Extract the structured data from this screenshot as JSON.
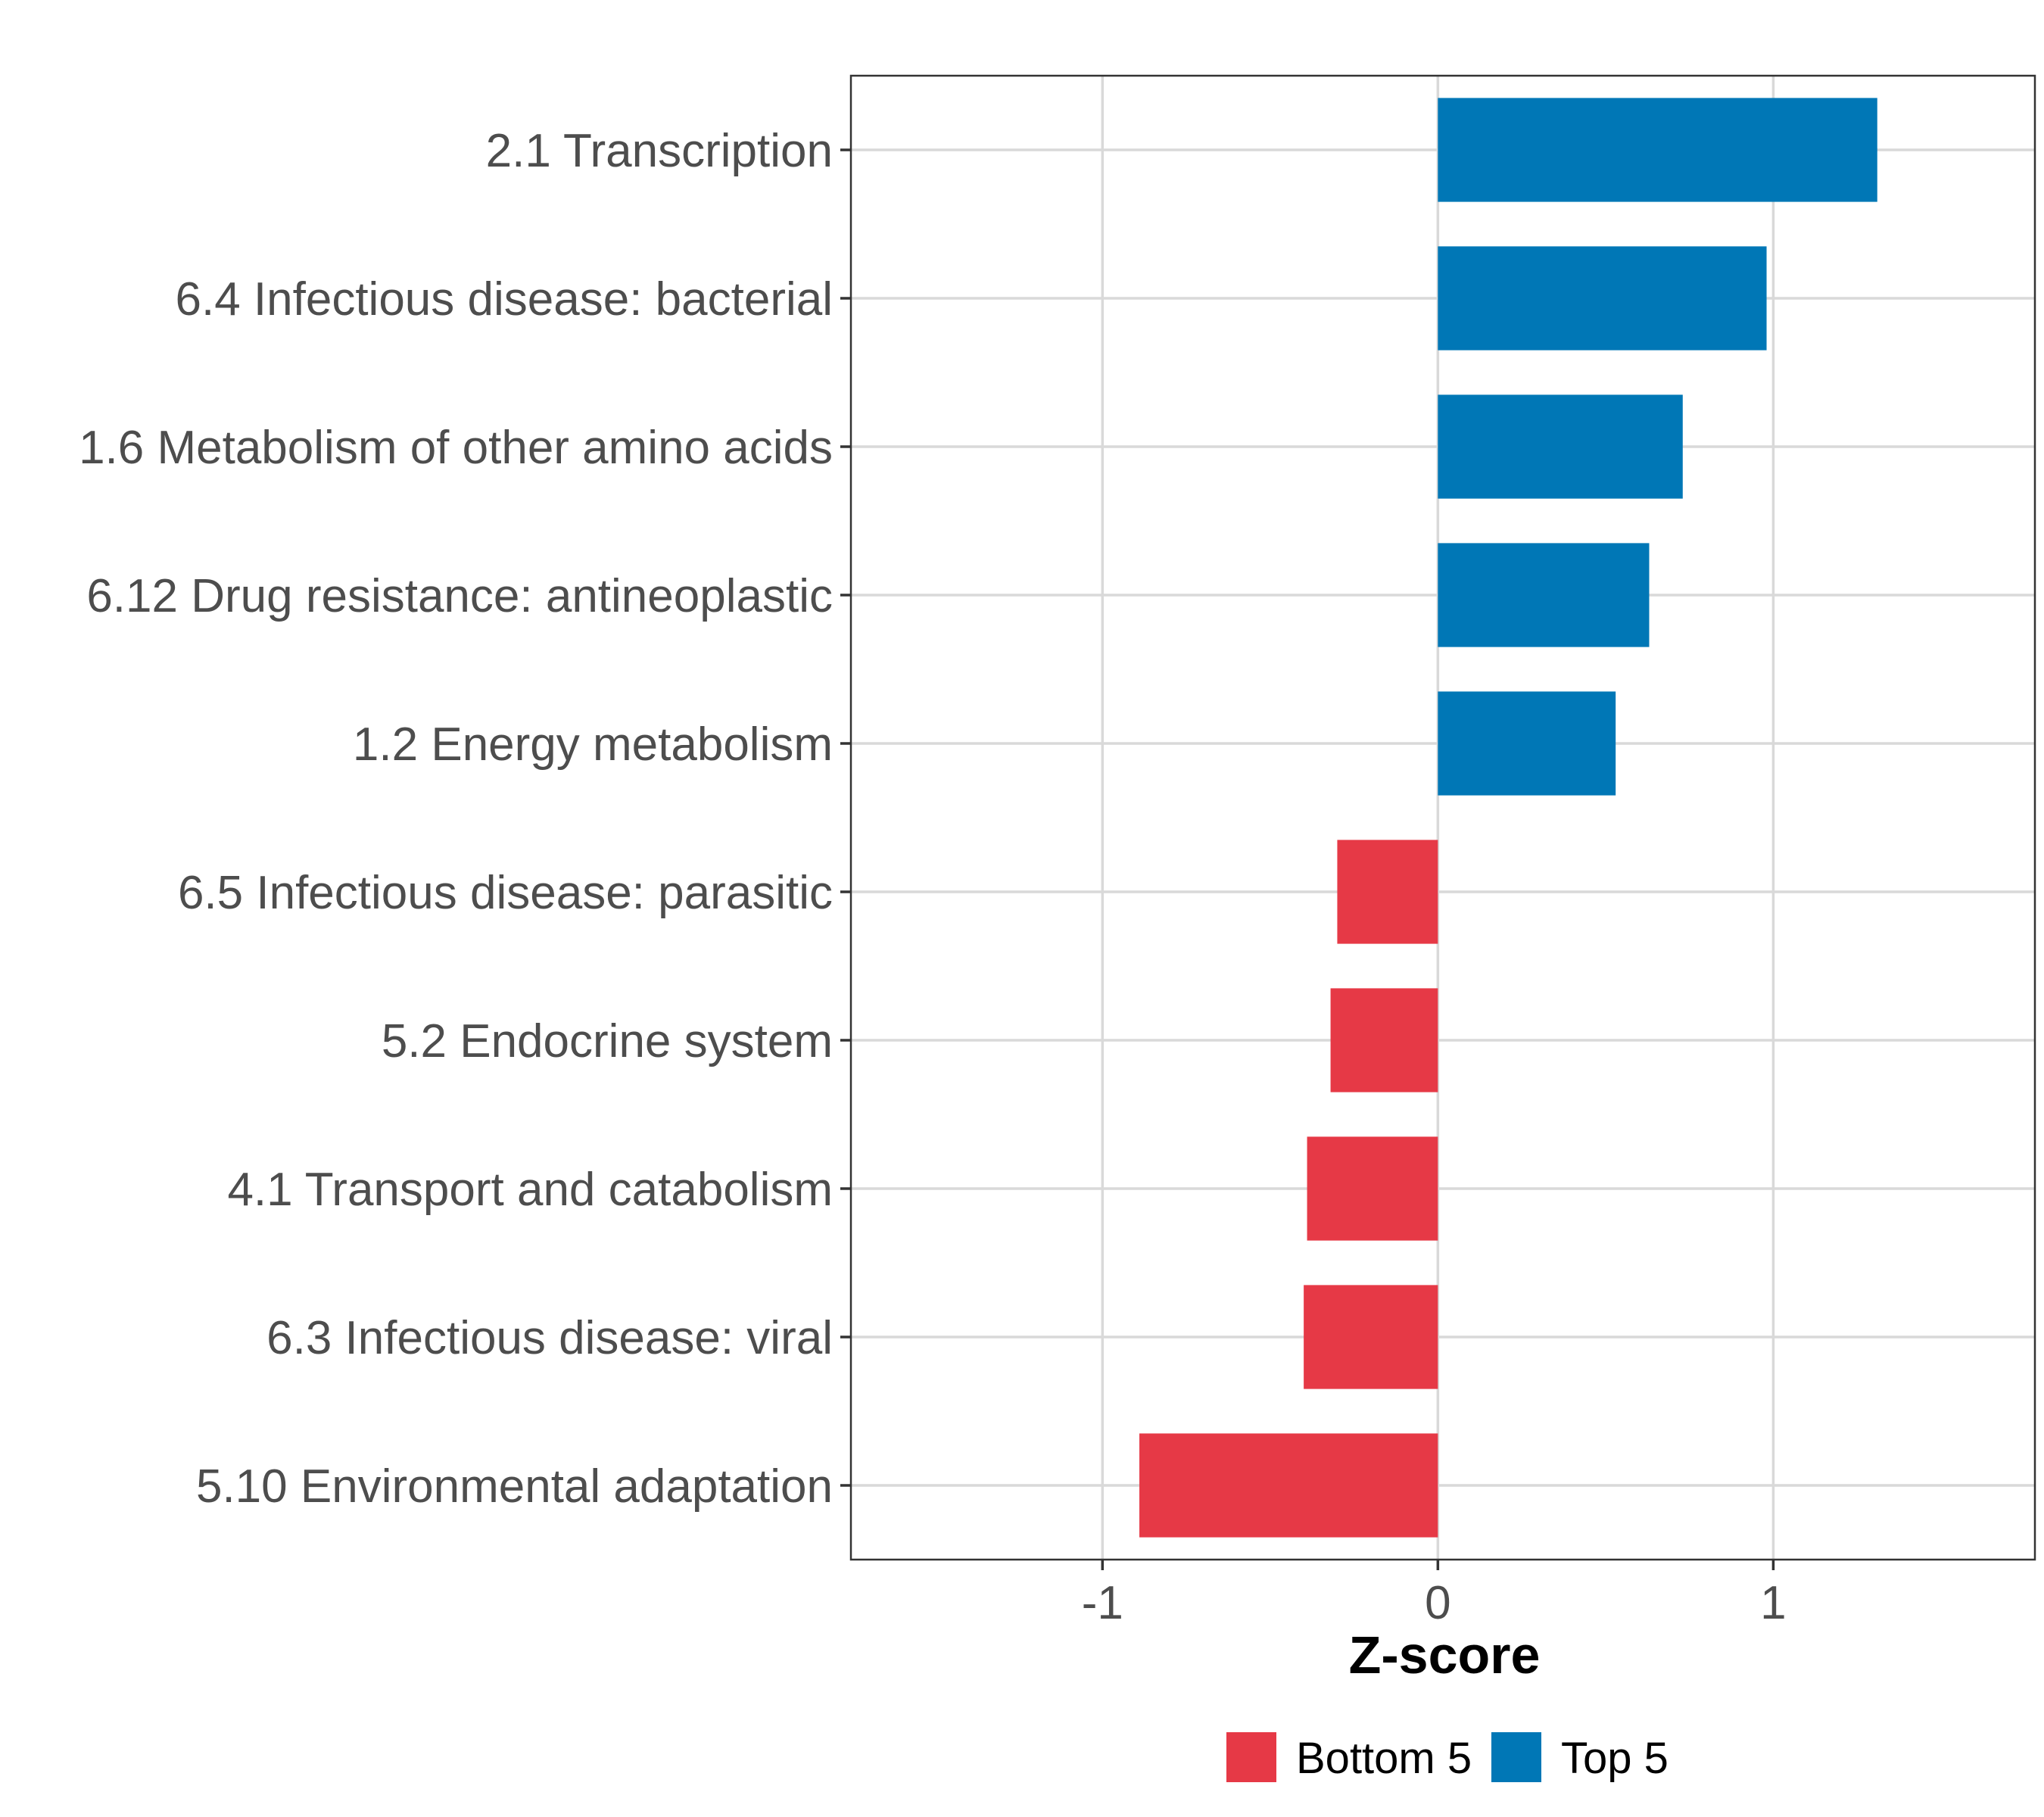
{
  "chart_data": {
    "type": "bar",
    "orientation": "horizontal",
    "xlabel": "Z-score",
    "xlim": [
      -1.75,
      1.78
    ],
    "xticks": [
      -1,
      0,
      1
    ],
    "xtick_labels": [
      "-1",
      "0",
      "1"
    ],
    "grid": true,
    "legend_position": "bottom",
    "legend": [
      {
        "key": "bottom",
        "label": "Bottom 5",
        "color": "#e63946"
      },
      {
        "key": "top",
        "label": "Top 5",
        "color": "#0077b6"
      }
    ],
    "categories": [
      "2.1 Transcription",
      "6.4 Infectious disease: bacterial",
      "1.6 Metabolism of other amino acids",
      "6.12 Drug resistance: antineoplastic",
      "1.2 Energy metabolism",
      "6.5 Infectious disease: parasitic",
      "5.2 Endocrine system",
      "4.1 Transport and catabolism",
      "6.3 Infectious disease: viral",
      "5.10 Environmental adaptation"
    ],
    "values": [
      1.31,
      0.98,
      0.73,
      0.63,
      0.53,
      -0.3,
      -0.32,
      -0.39,
      -0.4,
      -0.89
    ],
    "groups": [
      "top",
      "top",
      "top",
      "top",
      "top",
      "bottom",
      "bottom",
      "bottom",
      "bottom",
      "bottom"
    ]
  }
}
